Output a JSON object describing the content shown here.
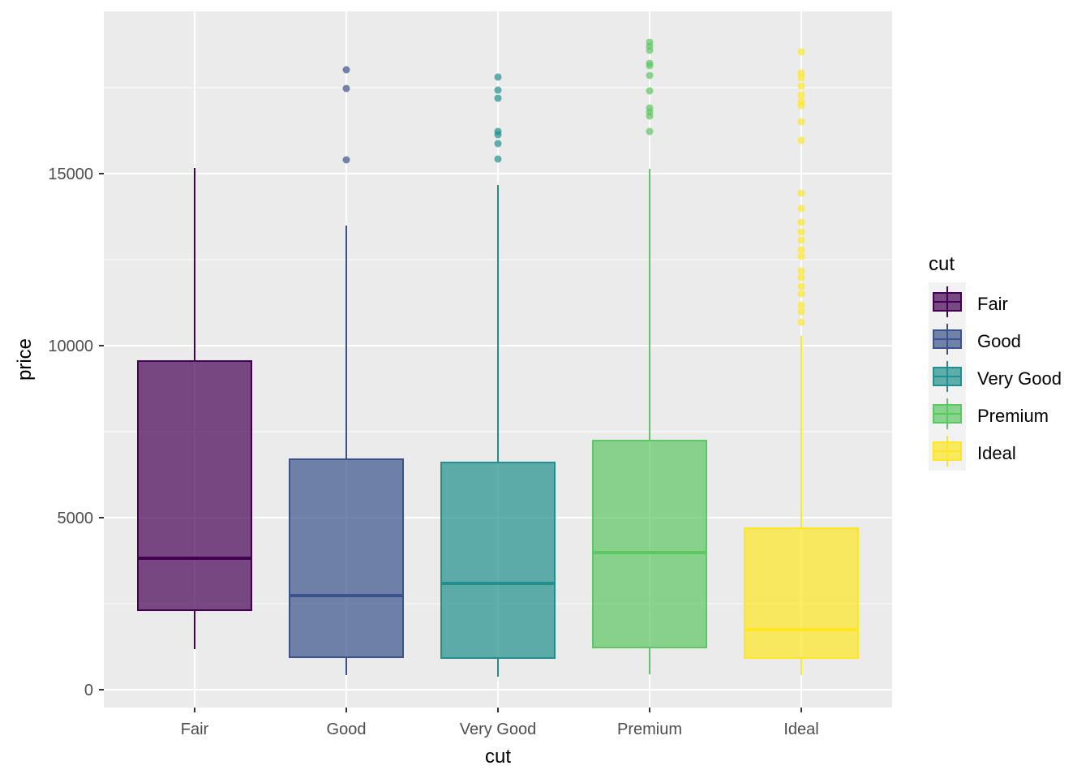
{
  "chart_data": {
    "type": "box",
    "xlabel": "cut",
    "ylabel": "price",
    "categories": [
      "Fair",
      "Good",
      "Very Good",
      "Premium",
      "Ideal"
    ],
    "ylim": [
      -519,
      19717
    ],
    "yticks": [
      0,
      5000,
      10000,
      15000
    ],
    "ytick_labels": [
      "0",
      "5000",
      "10000",
      "15000"
    ],
    "grid": true,
    "legend": {
      "title": "cut",
      "placement": "right",
      "entries": [
        "Fair",
        "Good",
        "Very Good",
        "Premium",
        "Ideal"
      ]
    },
    "colors": [
      "#440154",
      "#3B528B",
      "#21908C",
      "#5DC863",
      "#FDE725"
    ],
    "boxes": [
      {
        "category": "Fair",
        "lower_whisker": 1179,
        "q1": 2311,
        "median": 3821,
        "q3": 9552,
        "upper_whisker": 15165,
        "outliers": []
      },
      {
        "category": "Good",
        "lower_whisker": 425,
        "q1": 943,
        "median": 2736,
        "q3": 6698,
        "upper_whisker": 13491,
        "outliers": [
          18019,
          17476,
          15401
        ]
      },
      {
        "category": "Very Good",
        "lower_whisker": 377,
        "q1": 920,
        "median": 3090,
        "q3": 6604,
        "upper_whisker": 14670,
        "outliers": [
          17807,
          17429,
          17193,
          16226,
          16132,
          15873,
          15425
        ]
      },
      {
        "category": "Premium",
        "lower_whisker": 448,
        "q1": 1226,
        "median": 3986,
        "q3": 7241,
        "upper_whisker": 15142,
        "outliers": [
          18821,
          18703,
          18585,
          18208,
          18137,
          17854,
          17406,
          16910,
          16792,
          16675,
          16226
        ]
      },
      {
        "category": "Ideal",
        "lower_whisker": 425,
        "q1": 920,
        "median": 1745,
        "q3": 4693,
        "upper_whisker": 10283,
        "outliers": [
          18538,
          17925,
          17783,
          17547,
          17288,
          17099,
          16981,
          16509,
          15967,
          14434,
          13986,
          13585,
          13302,
          13066,
          12783,
          12594,
          12170,
          11981,
          11722,
          11509,
          11179,
          10990,
          10684
        ]
      }
    ]
  }
}
